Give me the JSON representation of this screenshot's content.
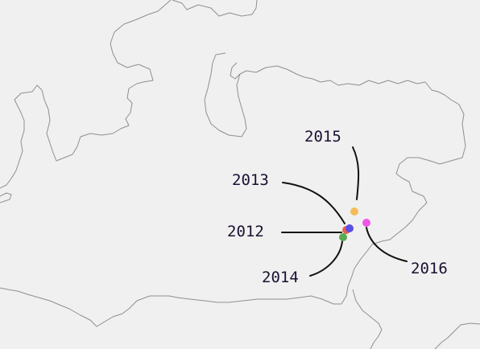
{
  "map": {
    "background": "#f0f0f0",
    "border_color": "#8f8f8f",
    "label_color": "#1c1030",
    "leader_color": "#111111"
  },
  "markers": [
    {
      "year": "2012",
      "color": "#e8604c"
    },
    {
      "year": "2013",
      "color": "#5a4ee6"
    },
    {
      "year": "2014",
      "color": "#5aa855"
    },
    {
      "year": "2015",
      "color": "#f3bd5c"
    },
    {
      "year": "2016",
      "color": "#ee55e8"
    }
  ]
}
